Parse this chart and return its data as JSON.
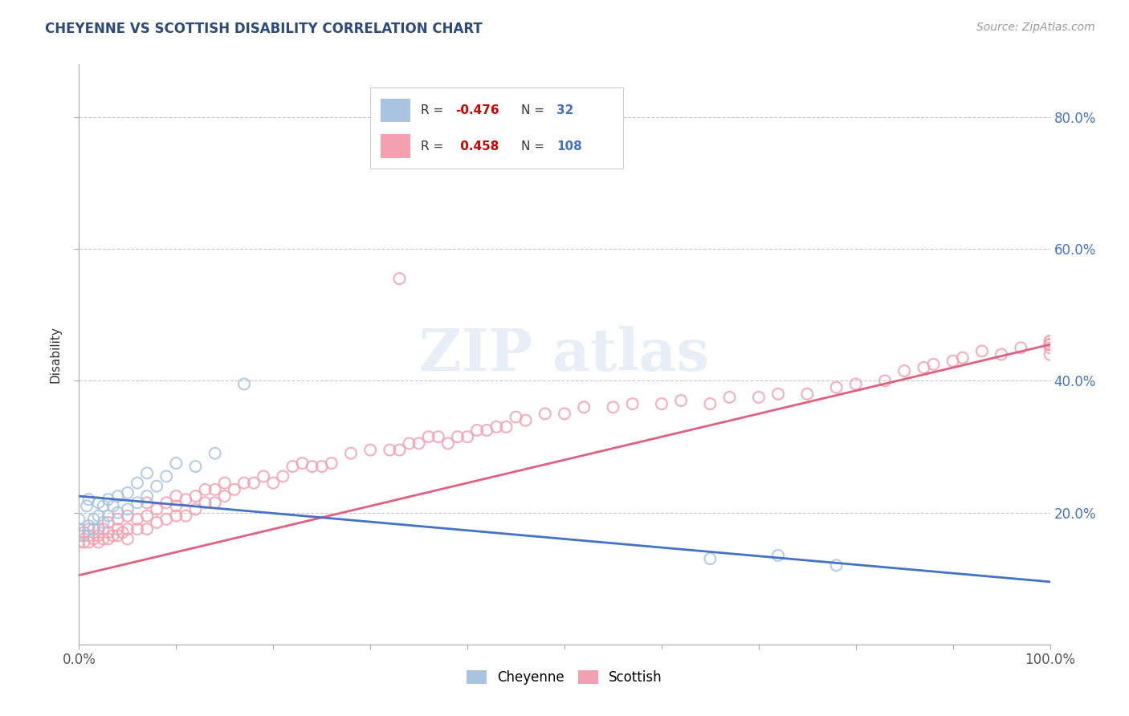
{
  "title": "CHEYENNE VS SCOTTISH DISABILITY CORRELATION CHART",
  "title_color": "#2d4a7a",
  "ylabel": "Disability",
  "source_text": "Source: ZipAtlas.com",
  "xlim": [
    0.0,
    1.0
  ],
  "ylim": [
    0.0,
    0.88
  ],
  "xtick_labels_edge": [
    "0.0%",
    "100.0%"
  ],
  "xtick_values_edge": [
    0.0,
    1.0
  ],
  "ytick_labels": [
    "20.0%",
    "40.0%",
    "60.0%",
    "80.0%"
  ],
  "ytick_values": [
    0.2,
    0.4,
    0.6,
    0.8
  ],
  "cheyenne_color": "#a8c4e0",
  "scottish_color": "#f4a0b0",
  "cheyenne_line_color": "#4472c4",
  "scottish_line_color": "#e06080",
  "cheyenne_R": -0.476,
  "cheyenne_N": 32,
  "scottish_R": 0.458,
  "scottish_N": 108,
  "legend_R_color": "#cc0000",
  "legend_N_color": "#4472c4",
  "background_color": "#ffffff",
  "grid_color": "#c8c8c8",
  "cheyenne_line_y0": 0.225,
  "cheyenne_line_y1": 0.095,
  "scottish_line_y0": 0.105,
  "scottish_line_y1": 0.455,
  "cheyenne_scatter_x": [
    0.0,
    0.0,
    0.005,
    0.008,
    0.01,
    0.01,
    0.015,
    0.015,
    0.02,
    0.02,
    0.025,
    0.025,
    0.03,
    0.03,
    0.035,
    0.04,
    0.04,
    0.05,
    0.05,
    0.06,
    0.06,
    0.07,
    0.07,
    0.08,
    0.09,
    0.1,
    0.12,
    0.14,
    0.17,
    0.65,
    0.72,
    0.78
  ],
  "cheyenne_scatter_y": [
    0.175,
    0.19,
    0.165,
    0.21,
    0.18,
    0.22,
    0.175,
    0.19,
    0.195,
    0.215,
    0.185,
    0.21,
    0.195,
    0.22,
    0.21,
    0.2,
    0.225,
    0.205,
    0.23,
    0.215,
    0.245,
    0.225,
    0.26,
    0.24,
    0.255,
    0.275,
    0.27,
    0.29,
    0.395,
    0.13,
    0.135,
    0.12
  ],
  "scottish_scatter_x": [
    0.0,
    0.0,
    0.0,
    0.005,
    0.005,
    0.01,
    0.01,
    0.01,
    0.015,
    0.015,
    0.02,
    0.02,
    0.02,
    0.025,
    0.025,
    0.03,
    0.03,
    0.03,
    0.035,
    0.04,
    0.04,
    0.04,
    0.045,
    0.05,
    0.05,
    0.05,
    0.06,
    0.06,
    0.07,
    0.07,
    0.07,
    0.08,
    0.08,
    0.09,
    0.09,
    0.1,
    0.1,
    0.1,
    0.11,
    0.11,
    0.12,
    0.12,
    0.13,
    0.13,
    0.14,
    0.14,
    0.15,
    0.15,
    0.16,
    0.17,
    0.18,
    0.19,
    0.2,
    0.21,
    0.22,
    0.23,
    0.24,
    0.25,
    0.26,
    0.28,
    0.3,
    0.32,
    0.33,
    0.33,
    0.34,
    0.35,
    0.36,
    0.37,
    0.38,
    0.39,
    0.4,
    0.41,
    0.42,
    0.43,
    0.44,
    0.45,
    0.46,
    0.48,
    0.5,
    0.52,
    0.55,
    0.57,
    0.6,
    0.62,
    0.65,
    0.67,
    0.7,
    0.72,
    0.75,
    0.78,
    0.8,
    0.83,
    0.85,
    0.87,
    0.88,
    0.9,
    0.91,
    0.93,
    0.95,
    0.97,
    1.0,
    1.0,
    1.0,
    1.0,
    1.0,
    1.0,
    1.0,
    1.0
  ],
  "scottish_scatter_y": [
    0.155,
    0.165,
    0.175,
    0.155,
    0.17,
    0.155,
    0.165,
    0.175,
    0.16,
    0.175,
    0.155,
    0.165,
    0.175,
    0.16,
    0.175,
    0.16,
    0.17,
    0.185,
    0.165,
    0.165,
    0.175,
    0.19,
    0.17,
    0.16,
    0.175,
    0.195,
    0.175,
    0.19,
    0.175,
    0.195,
    0.215,
    0.185,
    0.205,
    0.19,
    0.215,
    0.195,
    0.21,
    0.225,
    0.195,
    0.22,
    0.205,
    0.225,
    0.215,
    0.235,
    0.215,
    0.235,
    0.225,
    0.245,
    0.235,
    0.245,
    0.245,
    0.255,
    0.245,
    0.255,
    0.27,
    0.275,
    0.27,
    0.27,
    0.275,
    0.29,
    0.295,
    0.295,
    0.295,
    0.555,
    0.305,
    0.305,
    0.315,
    0.315,
    0.305,
    0.315,
    0.315,
    0.325,
    0.325,
    0.33,
    0.33,
    0.345,
    0.34,
    0.35,
    0.35,
    0.36,
    0.36,
    0.365,
    0.365,
    0.37,
    0.365,
    0.375,
    0.375,
    0.38,
    0.38,
    0.39,
    0.395,
    0.4,
    0.415,
    0.42,
    0.425,
    0.43,
    0.435,
    0.445,
    0.44,
    0.45,
    0.455,
    0.46,
    0.46,
    0.455,
    0.455,
    0.45,
    0.44,
    0.455
  ]
}
